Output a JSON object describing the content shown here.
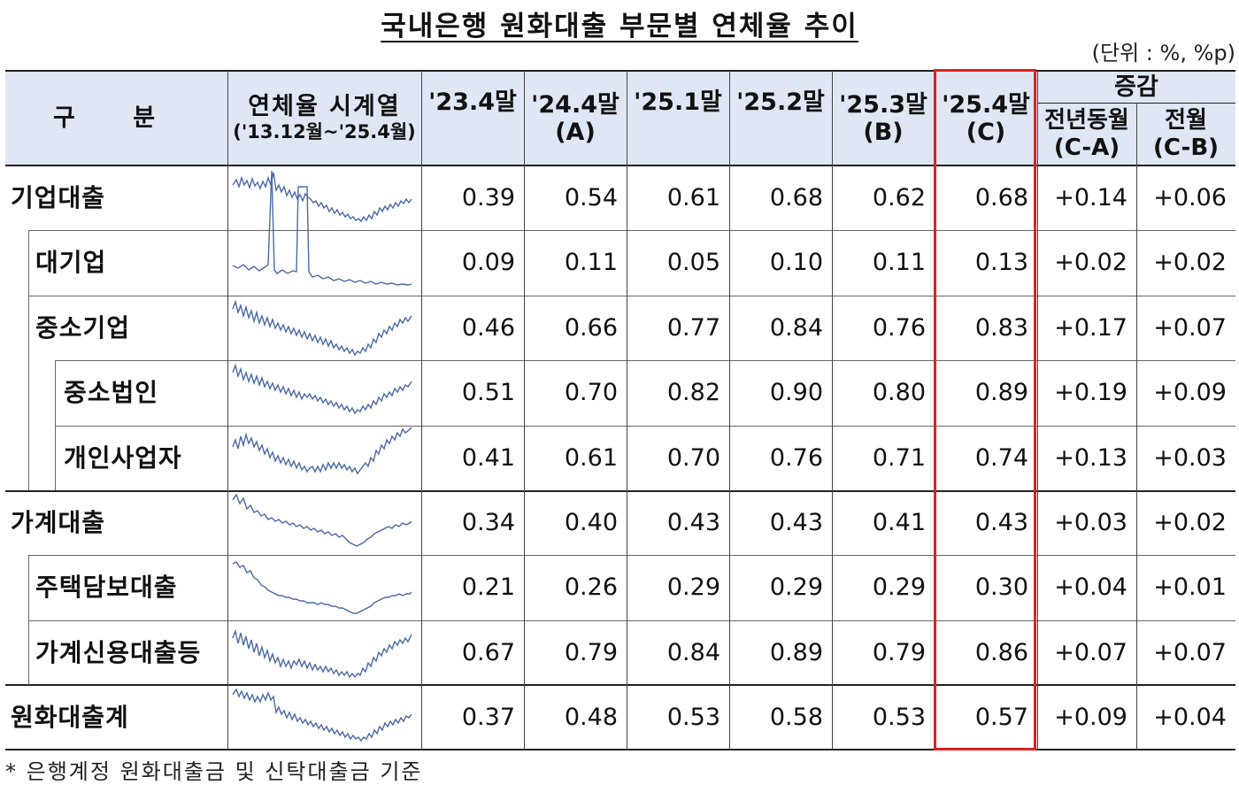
{
  "title": "국내은행 원화대출 부문별 연체율 추이",
  "unit": "(단위 : %, %p)",
  "footnote": "* 은행계정 원화대출금 및 신탁대출금 기준",
  "header": {
    "category": "구  분",
    "series_title": "연체율 시계열",
    "series_range": "('13.12월~'25.4월)",
    "c1": "'23.4말",
    "c2": "'24.4말",
    "c2b": "(A)",
    "c3": "'25.1말",
    "c4": "'25.2말",
    "c5": "'25.3말",
    "c5b": "(B)",
    "c6": "'25.4말",
    "c6b": "(C)",
    "change": "증감",
    "yoy": "전년동월",
    "yoy_b": "(C-A)",
    "mom": "전월",
    "mom_b": "(C-B)"
  },
  "rows": [
    {
      "label": "기업대출",
      "v": [
        "0.39",
        "0.54",
        "0.61",
        "0.68",
        "0.62",
        "0.68",
        "+0.14",
        "+0.06"
      ]
    },
    {
      "label": "대기업",
      "v": [
        "0.09",
        "0.11",
        "0.05",
        "0.10",
        "0.11",
        "0.13",
        "+0.02",
        "+0.02"
      ]
    },
    {
      "label": "중소기업",
      "v": [
        "0.46",
        "0.66",
        "0.77",
        "0.84",
        "0.76",
        "0.83",
        "+0.17",
        "+0.07"
      ]
    },
    {
      "label": "중소법인",
      "v": [
        "0.51",
        "0.70",
        "0.82",
        "0.90",
        "0.80",
        "0.89",
        "+0.19",
        "+0.09"
      ]
    },
    {
      "label": "개인사업자",
      "v": [
        "0.41",
        "0.61",
        "0.70",
        "0.76",
        "0.71",
        "0.74",
        "+0.13",
        "+0.03"
      ]
    },
    {
      "label": "가계대출",
      "v": [
        "0.34",
        "0.40",
        "0.43",
        "0.43",
        "0.41",
        "0.43",
        "+0.03",
        "+0.02"
      ]
    },
    {
      "label": "주택담보대출",
      "v": [
        "0.21",
        "0.26",
        "0.29",
        "0.29",
        "0.29",
        "0.30",
        "+0.04",
        "+0.01"
      ]
    },
    {
      "label": "가계신용대출등",
      "v": [
        "0.67",
        "0.79",
        "0.84",
        "0.89",
        "0.79",
        "0.86",
        "+0.07",
        "+0.07"
      ]
    },
    {
      "label": "원화대출계",
      "v": [
        "0.37",
        "0.48",
        "0.53",
        "0.58",
        "0.53",
        "0.57",
        "+0.09",
        "+0.04"
      ]
    }
  ],
  "colors": {
    "header_bg": "#dfe6f4",
    "highlight": "#e02020",
    "sparkline": "#4a6aa8"
  }
}
